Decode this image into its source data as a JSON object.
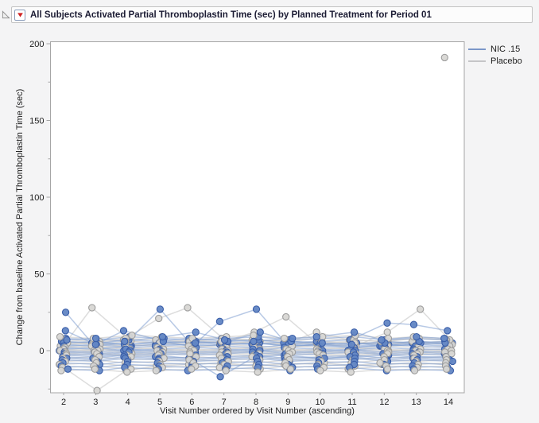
{
  "header": {
    "title": "All Subjects Activated Partial Thromboplastin Time (sec) by Planned Treatment for Period 01"
  },
  "legend": {
    "items": [
      {
        "label": "NIC .15",
        "color": "#7b97c8"
      },
      {
        "label": "Placebo",
        "color": "#c5c5c7"
      }
    ]
  },
  "chart_data": {
    "type": "line",
    "title": "",
    "xlabel": "Visit Number ordered by Visit Number (ascending)",
    "ylabel": "Change from baseline Activated Partial Thromboplastin Time (sec)",
    "x": [
      2,
      3,
      4,
      5,
      6,
      7,
      8,
      9,
      10,
      11,
      12,
      13,
      14
    ],
    "x_ticks": [
      2,
      3,
      4,
      5,
      6,
      7,
      8,
      9,
      10,
      11,
      12,
      13,
      14
    ],
    "y_ticks_major": [
      0,
      50,
      100,
      150,
      200
    ],
    "y_ticks_minor": [
      -25,
      25,
      75,
      125,
      175
    ],
    "ylim": [
      -30,
      203
    ],
    "grid": "off",
    "legend_position": "top-right",
    "marker": "circle",
    "groups": [
      {
        "name": "NIC .15",
        "fill": "#6286c4",
        "stroke": "#3a5ea8",
        "line_color": "#7d9cd0",
        "series": [
          [
            25,
            5,
            4,
            6,
            3,
            4,
            5,
            3,
            4,
            2,
            3,
            4,
            3
          ],
          [
            4,
            3,
            5,
            27,
            6,
            4,
            5,
            3,
            4,
            5,
            3,
            4,
            5
          ],
          [
            2,
            1,
            3,
            4,
            4,
            19,
            27,
            5,
            4,
            3,
            4,
            5,
            4
          ],
          [
            6,
            5,
            7,
            6,
            8,
            6,
            7,
            5,
            6,
            7,
            18,
            17,
            13
          ],
          [
            -3,
            -4,
            -2,
            -3,
            -5,
            -17,
            -4,
            -3,
            -5,
            -4,
            -3,
            -4,
            -5
          ],
          [
            8,
            7,
            9,
            8,
            7,
            8,
            9,
            7,
            8,
            9,
            7,
            8,
            7
          ],
          [
            5,
            6,
            4,
            5,
            6,
            5,
            4,
            6,
            5,
            4,
            6,
            5,
            6
          ],
          [
            3,
            4,
            2,
            3,
            4,
            3,
            2,
            4,
            3,
            2,
            4,
            3,
            2
          ],
          [
            1,
            2,
            0,
            1,
            2,
            1,
            0,
            2,
            1,
            0,
            2,
            1,
            1
          ],
          [
            0,
            -1,
            1,
            0,
            -1,
            0,
            1,
            -1,
            0,
            1,
            -1,
            0,
            -1
          ],
          [
            -1,
            -2,
            0,
            -1,
            -2,
            -1,
            0,
            -2,
            -1,
            0,
            -2,
            -1,
            -2
          ],
          [
            -2,
            -3,
            -1,
            -2,
            -3,
            -2,
            -1,
            -3,
            -2,
            -1,
            -3,
            -2,
            -3
          ],
          [
            -4,
            -5,
            -3,
            -4,
            -5,
            -4,
            -3,
            -5,
            -4,
            -3,
            -5,
            -4,
            -4
          ],
          [
            -5,
            -6,
            -4,
            -5,
            -6,
            -5,
            -4,
            -6,
            -5,
            -4,
            -6,
            -5,
            -6
          ],
          [
            -6,
            -7,
            -5,
            -6,
            -7,
            -6,
            -5,
            -7,
            -6,
            -5,
            -7,
            -6,
            -7
          ],
          [
            -8,
            -9,
            -7,
            -8,
            -9,
            -8,
            -7,
            -9,
            -8,
            -7,
            -9,
            -8,
            -9
          ],
          [
            -10,
            -11,
            -9,
            -10,
            -11,
            -10,
            -9,
            -11,
            -10,
            -9,
            -11,
            -10,
            -11
          ],
          [
            -12,
            -13,
            -11,
            -12,
            -13,
            -12,
            -11,
            -13,
            -12,
            -11,
            -13,
            -12,
            -13
          ],
          [
            13,
            4,
            13,
            6,
            5,
            6,
            12,
            6,
            5,
            4,
            5,
            6,
            5
          ],
          [
            7,
            8,
            6,
            9,
            12,
            7,
            6,
            8,
            9,
            12,
            7,
            9,
            8
          ]
        ]
      },
      {
        "name": "Placebo",
        "fill": "#d8d7d4",
        "stroke": "#9d9d9d",
        "line_color": "#c8c8c8",
        "series": [
          [
            5,
            28,
            6,
            5,
            7,
            5,
            6,
            4,
            5,
            6,
            4,
            5,
            6
          ],
          [
            6,
            5,
            7,
            21,
            28,
            8,
            7,
            6,
            12,
            7,
            6,
            8,
            7
          ],
          [
            4,
            5,
            3,
            4,
            6,
            5,
            12,
            22,
            5,
            4,
            6,
            5,
            4
          ],
          [
            3,
            2,
            4,
            3,
            2,
            4,
            3,
            2,
            4,
            3,
            12,
            27,
            7
          ],
          [
            -9,
            -26,
            -13,
            -10,
            -9,
            -8,
            -10,
            -9,
            -8,
            -10,
            -9,
            -8,
            -9
          ],
          [
            null,
            null,
            null,
            null,
            null,
            null,
            null,
            null,
            null,
            null,
            null,
            null,
            191
          ],
          [
            7,
            6,
            8,
            7,
            6,
            8,
            7,
            6,
            8,
            7,
            6,
            8,
            7
          ],
          [
            5,
            4,
            6,
            5,
            4,
            6,
            5,
            4,
            6,
            5,
            4,
            6,
            5
          ],
          [
            2,
            3,
            1,
            2,
            3,
            2,
            1,
            3,
            2,
            1,
            3,
            2,
            3
          ],
          [
            1,
            0,
            2,
            1,
            0,
            1,
            2,
            0,
            1,
            2,
            0,
            1,
            0
          ],
          [
            0,
            1,
            -1,
            0,
            1,
            0,
            -1,
            1,
            0,
            -1,
            1,
            0,
            1
          ],
          [
            -1,
            0,
            -2,
            -1,
            0,
            -1,
            -2,
            0,
            -1,
            -2,
            0,
            -1,
            0
          ],
          [
            -2,
            -1,
            -3,
            -2,
            -1,
            -2,
            -3,
            -1,
            -2,
            -3,
            -1,
            -2,
            -1
          ],
          [
            -3,
            -2,
            -4,
            -3,
            -2,
            -3,
            -4,
            -2,
            -3,
            -4,
            -2,
            -3,
            -2
          ],
          [
            -5,
            -4,
            -6,
            -5,
            -4,
            -5,
            -6,
            -4,
            -5,
            -6,
            -4,
            -5,
            -4
          ],
          [
            -7,
            -6,
            -8,
            -7,
            -6,
            -7,
            -8,
            -6,
            -7,
            -8,
            -6,
            -7,
            -6
          ],
          [
            -9,
            -8,
            -10,
            -9,
            -8,
            -9,
            -10,
            -8,
            -9,
            -10,
            -8,
            -9,
            -8
          ],
          [
            -11,
            -10,
            -12,
            -11,
            -10,
            -11,
            -12,
            -10,
            -11,
            -12,
            -10,
            -11,
            -10
          ],
          [
            9,
            8,
            10,
            9,
            8,
            9,
            10,
            8,
            9,
            10,
            8,
            9,
            8
          ],
          [
            -13,
            -12,
            -14,
            -13,
            -12,
            -13,
            -14,
            -12,
            -13,
            -14,
            -12,
            -13,
            -12
          ]
        ]
      }
    ]
  },
  "colors": {
    "window_bg": "#f4f4f5",
    "plot_bg": "#ffffff",
    "plot_border": "#a6a6a6",
    "accent_red": "#cf2222"
  }
}
